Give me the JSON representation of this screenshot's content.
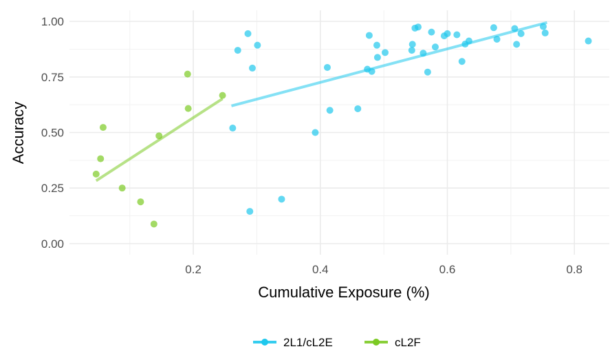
{
  "chart_data": {
    "type": "scatter",
    "title": "",
    "xlabel": "Cumulative Exposure (%)",
    "ylabel": "Accuracy",
    "xlim": [
      0.005,
      0.855
    ],
    "ylim": [
      -0.05,
      1.05
    ],
    "x_ticks": [
      0.2,
      0.4,
      0.6,
      0.8
    ],
    "x_tick_labels": [
      "0.2",
      "0.4",
      "0.6",
      "0.8"
    ],
    "y_ticks": [
      0.0,
      0.25,
      0.5,
      0.75,
      1.0
    ],
    "y_tick_labels": [
      "0.00",
      "0.25",
      "0.50",
      "0.75",
      "1.00"
    ],
    "grid": true,
    "legend_position": "bottom",
    "series": [
      {
        "name": "2L1/cL2E",
        "color": "#1fc8ed",
        "points": [
          [
            0.262,
            0.52
          ],
          [
            0.27,
            0.87
          ],
          [
            0.286,
            0.945
          ],
          [
            0.289,
            0.145
          ],
          [
            0.293,
            0.79
          ],
          [
            0.301,
            0.893
          ],
          [
            0.339,
            0.2
          ],
          [
            0.392,
            0.5
          ],
          [
            0.411,
            0.793
          ],
          [
            0.415,
            0.6
          ],
          [
            0.459,
            0.607
          ],
          [
            0.474,
            0.785
          ],
          [
            0.477,
            0.937
          ],
          [
            0.481,
            0.775
          ],
          [
            0.489,
            0.893
          ],
          [
            0.49,
            0.838
          ],
          [
            0.502,
            0.86
          ],
          [
            0.544,
            0.87
          ],
          [
            0.545,
            0.897
          ],
          [
            0.549,
            0.97
          ],
          [
            0.554,
            0.975
          ],
          [
            0.562,
            0.857
          ],
          [
            0.569,
            0.772
          ],
          [
            0.575,
            0.952
          ],
          [
            0.581,
            0.885
          ],
          [
            0.595,
            0.935
          ],
          [
            0.6,
            0.945
          ],
          [
            0.615,
            0.94
          ],
          [
            0.623,
            0.82
          ],
          [
            0.628,
            0.898
          ],
          [
            0.634,
            0.912
          ],
          [
            0.673,
            0.972
          ],
          [
            0.678,
            0.92
          ],
          [
            0.706,
            0.968
          ],
          [
            0.709,
            0.897
          ],
          [
            0.716,
            0.945
          ],
          [
            0.751,
            0.977
          ],
          [
            0.754,
            0.948
          ],
          [
            0.822,
            0.912
          ]
        ],
        "fit_line": [
          [
            0.26,
            0.62
          ],
          [
            0.757,
            0.995
          ]
        ]
      },
      {
        "name": "cL2F",
        "color": "#7cca24",
        "points": [
          [
            0.047,
            0.313
          ],
          [
            0.054,
            0.382
          ],
          [
            0.058,
            0.523
          ],
          [
            0.088,
            0.25
          ],
          [
            0.117,
            0.188
          ],
          [
            0.138,
            0.088
          ],
          [
            0.146,
            0.485
          ],
          [
            0.191,
            0.763
          ],
          [
            0.192,
            0.608
          ],
          [
            0.246,
            0.667
          ]
        ],
        "fit_line": [
          [
            0.047,
            0.283
          ],
          [
            0.246,
            0.652
          ]
        ]
      }
    ]
  }
}
